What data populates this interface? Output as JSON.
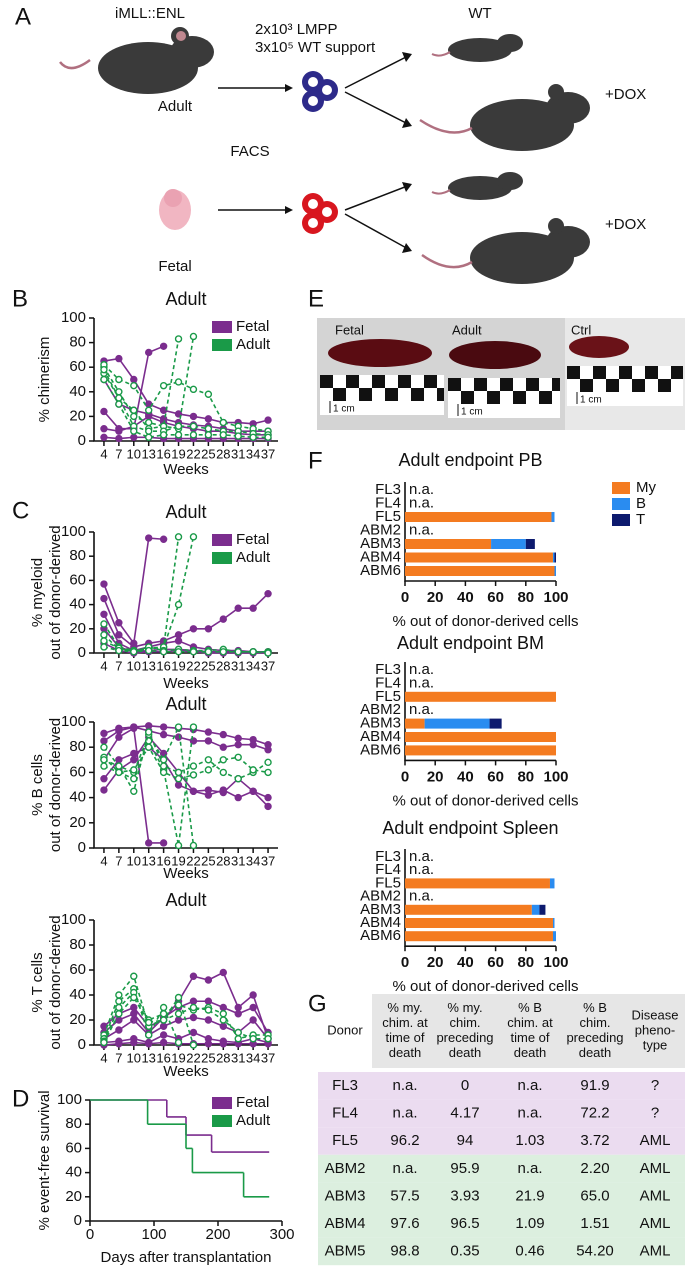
{
  "panel_labels": [
    "A",
    "B",
    "C",
    "D",
    "E",
    "F",
    "G"
  ],
  "panel_a": {
    "donor_strain": "iMLL::ENL",
    "adult": "Adult",
    "cells": [
      "2x10³ LMPP",
      "3x10⁵ WT support"
    ],
    "wt": "WT",
    "dox": "+DOX",
    "facs": "FACS",
    "fetal": "Fetal"
  },
  "panel_e": {
    "labels": [
      "Fetal",
      "Adult",
      "Ctrl"
    ],
    "scale": "1 cm"
  },
  "chart_data": [
    {
      "type": "line",
      "title": "Adult",
      "ylabel": [
        "% chimerism"
      ],
      "xlabel": "Weeks",
      "x": [
        4,
        7,
        10,
        13,
        16,
        19,
        22,
        25,
        28,
        31,
        34,
        37
      ],
      "xlim": [
        2,
        39
      ],
      "xticks": [
        4,
        7,
        10,
        13,
        16,
        19,
        22,
        25,
        28,
        31,
        34,
        37
      ],
      "ylim": [
        0,
        100
      ],
      "yticks": [
        0,
        20,
        40,
        60,
        80,
        100
      ],
      "legend": "top-right",
      "series": [
        {
          "name": "Fetal",
          "color": "#7b2d8e",
          "dashed": false,
          "open_markers": false,
          "lines": [
            [
              24,
              10,
              10,
              72,
              77,
              null,
              null,
              null,
              null,
              null,
              null,
              null
            ],
            [
              65,
              67,
              50,
              30,
              25,
              22,
              20,
              18,
              15,
              15,
              14,
              17
            ],
            [
              10,
              8,
              12,
              20,
              15,
              12,
              10,
              8,
              8,
              6,
              5,
              5
            ],
            [
              3,
              2,
              3,
              3,
              2,
              2,
              2,
              2,
              2,
              2,
              2,
              2
            ],
            [
              50,
              30,
              25,
              22,
              18,
              15,
              13,
              12,
              10,
              8,
              8,
              8
            ]
          ]
        },
        {
          "name": "Adult",
          "color": "#1a9a48",
          "dashed": true,
          "open_markers": true,
          "lines": [
            [
              60,
              40,
              20,
              15,
              12,
              83,
              null,
              null,
              null,
              null,
              null,
              null
            ],
            [
              55,
              35,
              25,
              10,
              12,
              10,
              85,
              null,
              null,
              null,
              null,
              null
            ],
            [
              62,
              50,
              45,
              25,
              45,
              48,
              42,
              38,
              15,
              12,
              10,
              8
            ],
            [
              58,
              35,
              12,
              8,
              8,
              12,
              12,
              10,
              8,
              8,
              6,
              5
            ],
            [
              50,
              30,
              8,
              3,
              5,
              5,
              5,
              5,
              5,
              4,
              3,
              3
            ]
          ]
        }
      ]
    },
    {
      "type": "line",
      "title": "Adult",
      "ylabel": [
        "% myeloid",
        "out of donor-derived"
      ],
      "xlabel": "Weeks",
      "x": [
        4,
        7,
        10,
        13,
        16,
        19,
        22,
        25,
        28,
        31,
        34,
        37
      ],
      "xlim": [
        2,
        39
      ],
      "xticks": [
        4,
        7,
        10,
        13,
        16,
        19,
        22,
        25,
        28,
        31,
        34,
        37
      ],
      "ylim": [
        0,
        100
      ],
      "yticks": [
        0,
        20,
        40,
        60,
        80,
        100
      ],
      "legend": "top-right",
      "series": [
        {
          "name": "Fetal",
          "color": "#7b2d8e",
          "dashed": false,
          "open_markers": false,
          "lines": [
            [
              57,
              25,
              8,
              95,
              94,
              null,
              null,
              null,
              null,
              null,
              null,
              null
            ],
            [
              45,
              15,
              5,
              8,
              10,
              15,
              20,
              20,
              28,
              37,
              37,
              49
            ],
            [
              32,
              8,
              2,
              5,
              8,
              10,
              5,
              3,
              2,
              2,
              1,
              1
            ],
            [
              20,
              5,
              1,
              2,
              3,
              3,
              2,
              1,
              1,
              1,
              1,
              1
            ],
            [
              8,
              2,
              0,
              1,
              1,
              2,
              1,
              0,
              0,
              0,
              0,
              0
            ]
          ]
        },
        {
          "name": "Adult",
          "color": "#1a9a48",
          "dashed": true,
          "open_markers": true,
          "lines": [
            [
              15,
              3,
              2,
              3,
              5,
              96,
              null,
              null,
              null,
              null,
              null,
              null
            ],
            [
              24,
              5,
              2,
              4,
              5,
              40,
              96,
              null,
              null,
              null,
              null,
              null
            ],
            [
              10,
              4,
              1,
              5,
              2,
              3,
              2,
              2,
              3,
              1,
              1,
              1
            ],
            [
              5,
              2,
              1,
              2,
              1,
              1,
              1,
              1,
              1,
              1,
              1,
              0
            ]
          ]
        }
      ]
    },
    {
      "type": "line",
      "title": "Adult",
      "ylabel": [
        "% B cells",
        "out of donor-derived"
      ],
      "xlabel": "Weeks",
      "x": [
        4,
        7,
        10,
        13,
        16,
        19,
        22,
        25,
        28,
        31,
        34,
        37
      ],
      "xlim": [
        2,
        39
      ],
      "xticks": [
        4,
        7,
        10,
        13,
        16,
        19,
        22,
        25,
        28,
        31,
        34,
        37
      ],
      "ylim": [
        0,
        100
      ],
      "yticks": [
        0,
        20,
        40,
        60,
        80,
        100
      ],
      "series": [
        {
          "color": "#7b2d8e",
          "dashed": false,
          "open_markers": false,
          "lines": [
            [
              91,
              95,
              96,
              97,
              96,
              95,
              94,
              92,
              90,
              87,
              86,
              82
            ],
            [
              85,
              93,
              96,
              93,
              90,
              88,
              85,
              85,
              80,
              82,
              82,
              78
            ],
            [
              70,
              88,
              95,
              4,
              4,
              null,
              null,
              null,
              null,
              null,
              null,
              null
            ],
            [
              46,
              62,
              70,
              88,
              75,
              60,
              45,
              46,
              44,
              55,
              45,
              33
            ],
            [
              55,
              70,
              75,
              80,
              70,
              50,
              45,
              42,
              46,
              40,
              45,
              40
            ]
          ]
        },
        {
          "color": "#1a9a48",
          "dashed": true,
          "open_markers": true,
          "lines": [
            [
              80,
              65,
              60,
              90,
              70,
              96,
              2,
              null,
              null,
              null,
              null,
              null
            ],
            [
              72,
              60,
              55,
              85,
              62,
              2,
              96,
              null,
              null,
              null,
              null,
              null
            ],
            [
              70,
              65,
              45,
              92,
              65,
              60,
              65,
              70,
              60,
              55,
              60,
              68
            ],
            [
              65,
              60,
              62,
              80,
              60,
              55,
              58,
              62,
              70,
              72,
              62,
              60
            ]
          ]
        }
      ]
    },
    {
      "type": "line",
      "title": "Adult",
      "ylabel": [
        "% T cells",
        "out of donor-derived"
      ],
      "xlabel": "Weeks",
      "x": [
        4,
        7,
        10,
        13,
        16,
        19,
        22,
        25,
        28,
        31,
        34,
        37
      ],
      "xlim": [
        2,
        39
      ],
      "xticks": [
        4,
        7,
        10,
        13,
        16,
        19,
        22,
        25,
        28,
        31,
        34,
        37
      ],
      "ylim": [
        0,
        100
      ],
      "yticks": [
        0,
        20,
        40,
        60,
        80,
        100
      ],
      "series": [
        {
          "color": "#7b2d8e",
          "dashed": false,
          "open_markers": false,
          "lines": [
            [
              15,
              25,
              30,
              15,
              20,
              35,
              55,
              52,
              58,
              30,
              40,
              5
            ],
            [
              10,
              20,
              25,
              10,
              22,
              30,
              35,
              35,
              30,
              25,
              30,
              10
            ],
            [
              5,
              12,
              20,
              8,
              15,
              20,
              22,
              20,
              15,
              10,
              20,
              5
            ],
            [
              2,
              3,
              5,
              2,
              8,
              5,
              10,
              5,
              3,
              2,
              5,
              2
            ],
            [
              0,
              1,
              2,
              1,
              2,
              1,
              1,
              1,
              1,
              1,
              1,
              1
            ]
          ]
        },
        {
          "color": "#1a9a48",
          "dashed": true,
          "open_markers": true,
          "lines": [
            [
              8,
              40,
              55,
              15,
              20,
              38,
              0,
              null,
              null,
              null,
              null,
              null
            ],
            [
              5,
              35,
              45,
              8,
              30,
              2,
              null,
              null,
              null,
              null,
              null,
              null
            ],
            [
              3,
              30,
              42,
              20,
              25,
              32,
              28,
              30,
              25,
              5,
              8,
              8
            ],
            [
              2,
              25,
              38,
              18,
              20,
              25,
              30,
              28,
              20,
              10,
              5,
              5
            ]
          ]
        }
      ]
    },
    {
      "type": "step",
      "ylabel": [
        "% event-free survival"
      ],
      "xlabel": "Days after transplantation",
      "xlim": [
        0,
        300
      ],
      "xticks": [
        0,
        100,
        200,
        300
      ],
      "ylim": [
        0,
        100
      ],
      "yticks": [
        0,
        20,
        40,
        60,
        80,
        100
      ],
      "legend": "top-right",
      "series": [
        {
          "name": "Fetal",
          "color": "#7b2d8e",
          "x": [
            0,
            120,
            150,
            190,
            280
          ],
          "values": [
            100,
            86,
            71,
            57,
            57
          ]
        },
        {
          "name": "Adult",
          "color": "#1a9a48",
          "x": [
            0,
            90,
            150,
            160,
            240,
            280
          ],
          "values": [
            100,
            80,
            60,
            40,
            20,
            20
          ]
        }
      ]
    },
    {
      "type": "bar",
      "orientation": "horizontal",
      "stacked": true,
      "title": "Adult endpoint PB",
      "xlabel": "% out of donor-derived cells",
      "categories": [
        "FL3",
        "FL4",
        "FL5",
        "ABM2",
        "ABM3",
        "ABM4",
        "ABM6"
      ],
      "annotations": [
        "n.a.",
        "n.a.",
        null,
        "n.a.",
        null,
        null,
        null
      ],
      "xlim": [
        0,
        100
      ],
      "xticks": [
        0,
        20,
        40,
        60,
        80,
        100
      ],
      "legend": "right",
      "series": [
        {
          "name": "My",
          "color": "#f47b20",
          "values": [
            null,
            null,
            97,
            null,
            57,
            98,
            99
          ]
        },
        {
          "name": "B",
          "color": "#2a8cf0",
          "values": [
            null,
            null,
            2,
            null,
            23,
            1,
            1
          ]
        },
        {
          "name": "T",
          "color": "#0d1a6e",
          "values": [
            null,
            null,
            0,
            null,
            6,
            1,
            0
          ]
        }
      ]
    },
    {
      "type": "bar",
      "orientation": "horizontal",
      "stacked": true,
      "title": "Adult endpoint BM",
      "xlabel": "% out of donor-derived cells",
      "categories": [
        "FL3",
        "FL4",
        "FL5",
        "ABM2",
        "ABM3",
        "ABM4",
        "ABM6"
      ],
      "annotations": [
        "n.a.",
        "n.a.",
        null,
        "n.a.",
        null,
        null,
        null
      ],
      "xlim": [
        0,
        100
      ],
      "xticks": [
        0,
        20,
        40,
        60,
        80,
        100
      ],
      "series": [
        {
          "color": "#f47b20",
          "values": [
            null,
            null,
            100,
            null,
            13,
            100,
            100
          ]
        },
        {
          "color": "#2a8cf0",
          "values": [
            null,
            null,
            0,
            null,
            43,
            0,
            0
          ]
        },
        {
          "color": "#0d1a6e",
          "values": [
            null,
            null,
            0,
            null,
            8,
            0,
            0
          ]
        }
      ]
    },
    {
      "type": "bar",
      "orientation": "horizontal",
      "stacked": true,
      "title": "Adult endpoint Spleen",
      "xlabel": "% out of donor-derived cells",
      "categories": [
        "FL3",
        "FL4",
        "FL5",
        "ABM2",
        "ABM3",
        "ABM4",
        "ABM6"
      ],
      "annotations": [
        "n.a.",
        "n.a.",
        null,
        "n.a.",
        null,
        null,
        null
      ],
      "xlim": [
        0,
        100
      ],
      "xticks": [
        0,
        20,
        40,
        60,
        80,
        100
      ],
      "series": [
        {
          "color": "#f47b20",
          "values": [
            null,
            null,
            96,
            null,
            84,
            98,
            98
          ]
        },
        {
          "color": "#2a8cf0",
          "values": [
            null,
            null,
            3,
            null,
            5,
            1,
            2
          ]
        },
        {
          "color": "#0d1a6e",
          "values": [
            null,
            null,
            0,
            null,
            4,
            0,
            0
          ]
        }
      ]
    }
  ],
  "table": {
    "header": [
      [
        "Donor"
      ],
      [
        "% my.",
        "chim. at",
        "time of",
        "death"
      ],
      [
        "% my.",
        "chim.",
        "preceding",
        "death"
      ],
      [
        "% B",
        "chim. at",
        "time of",
        "death"
      ],
      [
        "% B",
        "chim.",
        "preceding",
        "death"
      ],
      [
        "Disease",
        "pheno-",
        "type"
      ]
    ],
    "rows": [
      [
        "FL3",
        "n.a.",
        "0",
        "n.a.",
        "91.9",
        "?"
      ],
      [
        "FL4",
        "n.a.",
        "4.17",
        "n.a.",
        "72.2",
        "?"
      ],
      [
        "FL5",
        "96.2",
        "94",
        "1.03",
        "3.72",
        "AML"
      ],
      [
        "ABM2",
        "n.a.",
        "95.9",
        "n.a.",
        "2.20",
        "AML"
      ],
      [
        "ABM3",
        "57.5",
        "3.93",
        "21.9",
        "65.0",
        "AML"
      ],
      [
        "ABM4",
        "97.6",
        "96.5",
        "1.09",
        "1.51",
        "AML"
      ],
      [
        "ABM5",
        "98.8",
        "0.35",
        "0.46",
        "54.20",
        "AML"
      ]
    ]
  }
}
